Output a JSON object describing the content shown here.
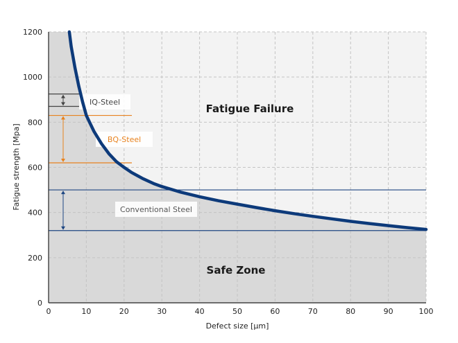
{
  "chart_data": {
    "type": "line",
    "title": "",
    "xlabel": "Defect size [µm]",
    "ylabel": "Fatigue strength [Mpa]",
    "xlim": [
      0,
      100
    ],
    "ylim": [
      0,
      1200
    ],
    "xticks": [
      0,
      10,
      20,
      30,
      40,
      50,
      60,
      70,
      80,
      90,
      100
    ],
    "yticks": [
      0,
      200,
      400,
      600,
      800,
      1000,
      1200
    ],
    "grid": true,
    "series": [
      {
        "name": "",
        "x": [
          5.5,
          6,
          7,
          8,
          9,
          10,
          12,
          14,
          16,
          18,
          20,
          22,
          25,
          28,
          30,
          35,
          40,
          45,
          50,
          55,
          60,
          65,
          70,
          75,
          80,
          85,
          90,
          95,
          100
        ],
        "y": [
          1200,
          1135,
          1040,
          960,
          890,
          830,
          760,
          705,
          660,
          625,
          600,
          577,
          550,
          527,
          515,
          490,
          470,
          452,
          437,
          422,
          408,
          395,
          383,
          372,
          361,
          351,
          342,
          333,
          325
        ]
      }
    ],
    "regions": {
      "upper_label": "Fatigue Failure",
      "lower_label": "Safe Zone",
      "upper_color": "#f3f3f3",
      "lower_color": "#d9d9d9"
    },
    "annotations": [
      {
        "label": "IQ-Steel",
        "low": 870,
        "high": 925,
        "color": "#444444"
      },
      {
        "label": "BQ-Steel",
        "low": 620,
        "high": 830,
        "color": "#e8821e"
      },
      {
        "label": "Conventional Steel",
        "low": 320,
        "high": 500,
        "color": "#1e4682"
      }
    ],
    "line_color": "#0d3a7a"
  }
}
